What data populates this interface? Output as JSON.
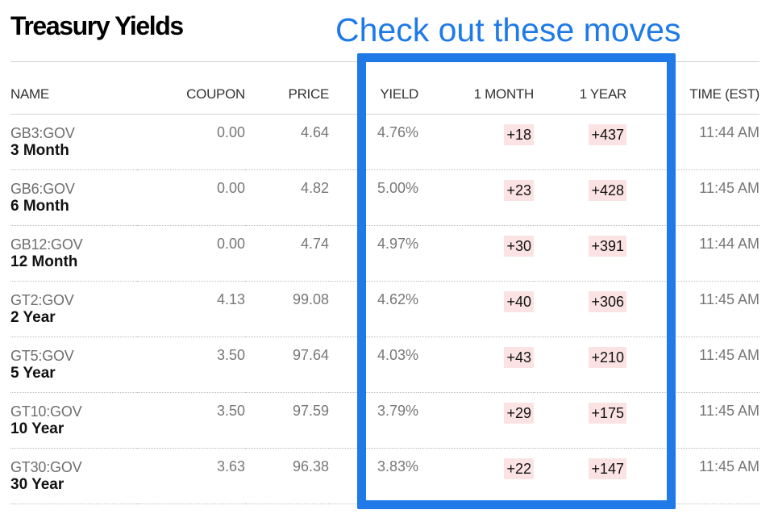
{
  "page": {
    "title": "Treasury Yields",
    "annotation": "Check out these moves"
  },
  "table": {
    "headers": {
      "name": "NAME",
      "coupon": "COUPON",
      "price": "PRICE",
      "yield": "YIELD",
      "month": "1 MONTH",
      "year": "1 YEAR",
      "time": "TIME (EST)"
    },
    "rows": [
      {
        "symbol": "GB3:GOV",
        "name": "3 Month",
        "coupon": "0.00",
        "price": "4.64",
        "yield": "4.76%",
        "month": "+18",
        "year": "+437",
        "time": "11:44 AM"
      },
      {
        "symbol": "GB6:GOV",
        "name": "6 Month",
        "coupon": "0.00",
        "price": "4.82",
        "yield": "5.00%",
        "month": "+23",
        "year": "+428",
        "time": "11:45 AM"
      },
      {
        "symbol": "GB12:GOV",
        "name": "12 Month",
        "coupon": "0.00",
        "price": "4.74",
        "yield": "4.97%",
        "month": "+30",
        "year": "+391",
        "time": "11:44 AM"
      },
      {
        "symbol": "GT2:GOV",
        "name": "2 Year",
        "coupon": "4.13",
        "price": "99.08",
        "yield": "4.62%",
        "month": "+40",
        "year": "+306",
        "time": "11:45 AM"
      },
      {
        "symbol": "GT5:GOV",
        "name": "5 Year",
        "coupon": "3.50",
        "price": "97.64",
        "yield": "4.03%",
        "month": "+43",
        "year": "+210",
        "time": "11:45 AM"
      },
      {
        "symbol": "GT10:GOV",
        "name": "10 Year",
        "coupon": "3.50",
        "price": "97.59",
        "yield": "3.79%",
        "month": "+29",
        "year": "+175",
        "time": "11:45 AM"
      },
      {
        "symbol": "GT30:GOV",
        "name": "30 Year",
        "coupon": "3.63",
        "price": "96.38",
        "yield": "3.83%",
        "month": "+22",
        "year": "+147",
        "time": "11:45 AM"
      }
    ]
  },
  "colors": {
    "annotation": "#1f7ae8",
    "change_background": "#fbe3e3"
  }
}
